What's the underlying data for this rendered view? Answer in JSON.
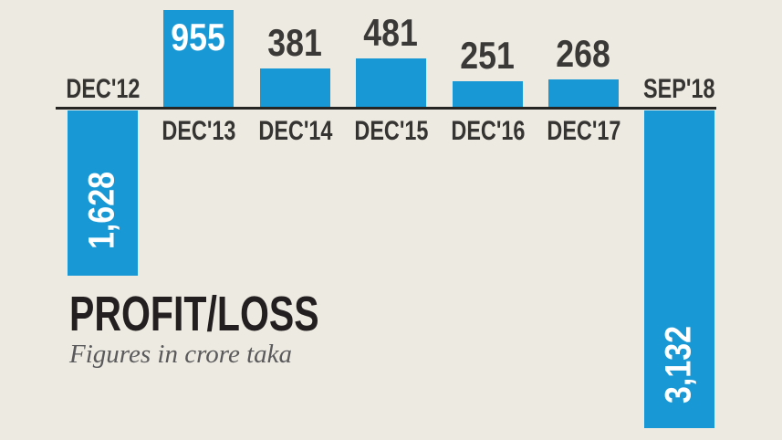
{
  "chart_data": {
    "type": "bar",
    "title": "PROFIT/LOSS",
    "subtitle": "Figures in crore taka",
    "categories": [
      "DEC'12",
      "DEC'13",
      "DEC'14",
      "DEC'15",
      "DEC'16",
      "DEC'17",
      "SEP'18"
    ],
    "values": [
      -1628,
      955,
      381,
      481,
      251,
      268,
      -3132
    ],
    "value_labels": [
      "1,628",
      "955",
      "381",
      "481",
      "251",
      "268",
      "3,132"
    ],
    "value_placement": [
      "inside-rotated",
      "inside",
      "above",
      "above",
      "above",
      "above",
      "inside-rotated"
    ],
    "orientation": "vertical bars around a zero baseline; positive up, negative down",
    "ylim": [
      -3132,
      955
    ],
    "grid": "off",
    "legend": "none",
    "colors": {
      "bar": "#1899D6",
      "background": "#EDEAE1",
      "baseline": "#262523",
      "label_text": "#363432",
      "value_text_dark": "#3B3937",
      "value_text_light": "#FFFFFF",
      "title_text": "#231F20",
      "subtitle_text": "#5A5A5C"
    }
  }
}
